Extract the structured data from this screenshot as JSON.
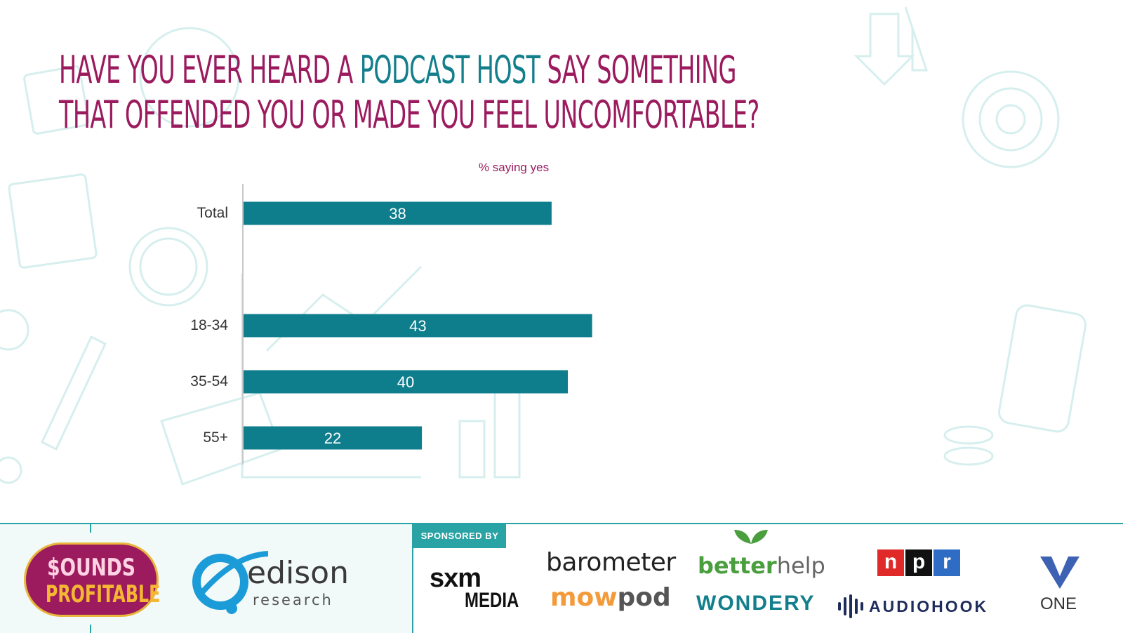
{
  "title": {
    "part1": "Have you ever heard a ",
    "accent": "podcast host",
    "part2": " say something",
    "line2": "that offended you or made you feel uncomfortable?"
  },
  "colors": {
    "title": "#9b1b5e",
    "accent": "#137f8c",
    "bar": "#0e7d8c",
    "footer_line": "#2aa3a4"
  },
  "chart_data": {
    "type": "bar",
    "orientation": "horizontal",
    "title": "% saying yes",
    "categories": [
      "Total",
      "18-34",
      "35-54",
      "55+"
    ],
    "values": [
      38,
      43,
      40,
      22
    ],
    "xlim": [
      0,
      100
    ],
    "grid": false,
    "legend": "none"
  },
  "footer": {
    "sponsored_by": "SPONSORED BY",
    "logos": {
      "sounds_line1": "$OUNDS",
      "sounds_line2": "PROFITABLE",
      "edison": "edison",
      "edison_sub": "research",
      "sxm": "sxm",
      "sxm_media": "MEDIA",
      "barometer": "barometer",
      "mowpod_a": "mow",
      "mowpod_b": "pod",
      "betterhelp_a": "better",
      "betterhelp_b": "help",
      "wondery": "WONDERY",
      "npr_n": "n",
      "npr_p": "p",
      "npr_r": "r",
      "audiohook": "AUDIOHOOK",
      "one": "ONE"
    },
    "logo_icons": [
      "edison-globe-icon",
      "betterhelp-leaf-icon",
      "audiohook-wave-icon",
      "one-v-icon"
    ]
  }
}
